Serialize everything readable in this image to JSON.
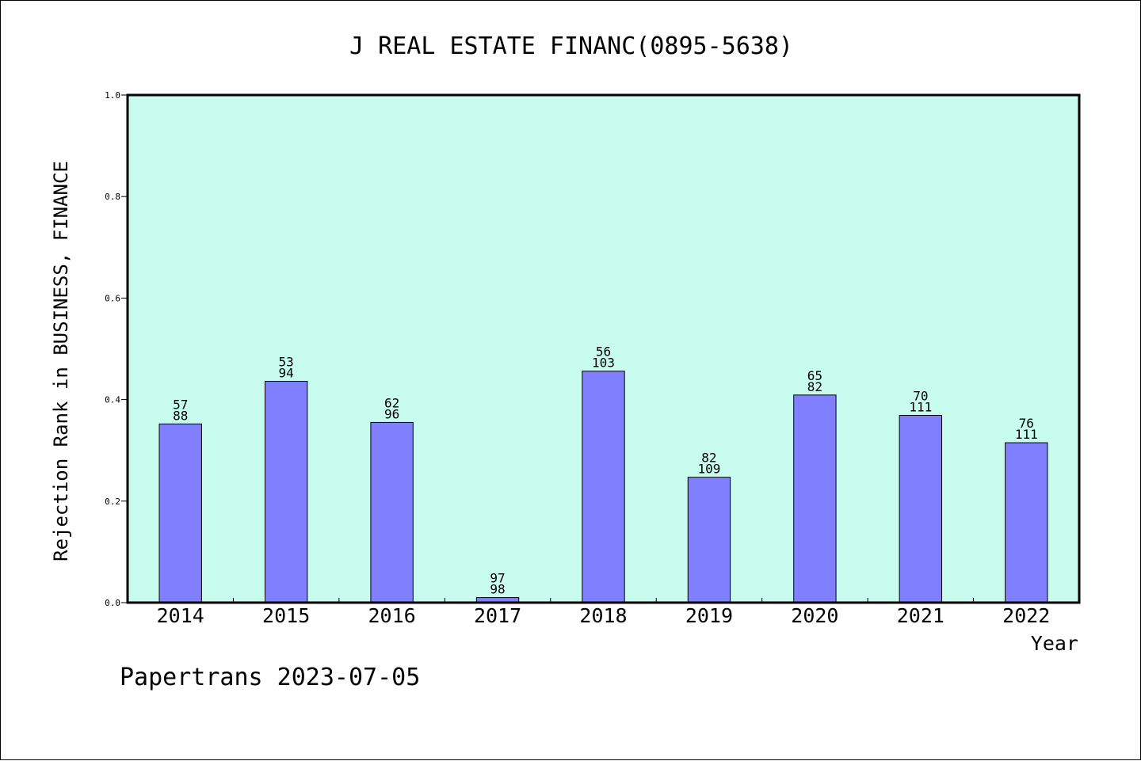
{
  "footer_text": "Papertrans 2023-07-05",
  "colors": {
    "plot_background": "#c8fcee",
    "bar_fill": "#8080ff",
    "axis": "#000000"
  },
  "chart_data": {
    "type": "bar",
    "title": "J REAL ESTATE FINANC(0895-5638)",
    "xlabel": "Year",
    "ylabel": "Rejection Rank in BUSINESS, FINANCE",
    "ylim": [
      0,
      1.0
    ],
    "yticks": [
      "0.0",
      "0.2",
      "0.4",
      "0.6",
      "0.8",
      "1.0"
    ],
    "grid": false,
    "categories": [
      "2014",
      "2015",
      "2016",
      "2017",
      "2018",
      "2019",
      "2020",
      "2021",
      "2022"
    ],
    "values": [
      0.352,
      0.436,
      0.355,
      0.01,
      0.456,
      0.247,
      0.409,
      0.369,
      0.315
    ],
    "label_top": [
      "57",
      "53",
      "62",
      "97",
      "56",
      "82",
      "65",
      "70",
      "76"
    ],
    "label_bottom": [
      "88",
      "94",
      "96",
      "98",
      "103",
      "109",
      "82",
      "111",
      "111"
    ]
  }
}
